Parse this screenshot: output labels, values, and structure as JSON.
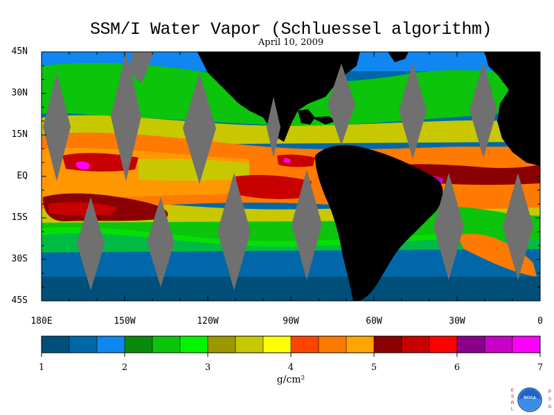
{
  "title": "SSM/I Water Vapor (Schluessel algorithm)",
  "date": "April 10, 2009",
  "lat_labels": [
    "45N",
    "30N",
    "15N",
    "EQ",
    "15S",
    "30S",
    "45S"
  ],
  "lon_labels": [
    "180E",
    "150W",
    "120W",
    "90W",
    "60W",
    "30W",
    "0"
  ],
  "colorbar": {
    "ticks": [
      "1",
      "2",
      "3",
      "4",
      "5",
      "6",
      "7"
    ],
    "unit": "g/cm²",
    "range": [
      1,
      7
    ],
    "colors": [
      "#004f7a",
      "#0068a8",
      "#0f86f0",
      "#0a8a0a",
      "#0cc40c",
      "#00f400",
      "#9a9a00",
      "#c8c800",
      "#ffff00",
      "#ff4400",
      "#ff7a00",
      "#ffa500",
      "#8b0000",
      "#c80000",
      "#ff0000",
      "#8b008b",
      "#c800c8",
      "#ff00ff"
    ]
  },
  "map": {
    "land_color": "#000000",
    "no_data_color": "#707070",
    "lon_range": [
      -180,
      0
    ],
    "lat_range": [
      -45,
      45
    ]
  },
  "logo": {
    "left_letters": "ESRL",
    "right_letters": "PSD",
    "text": "NOAA"
  }
}
